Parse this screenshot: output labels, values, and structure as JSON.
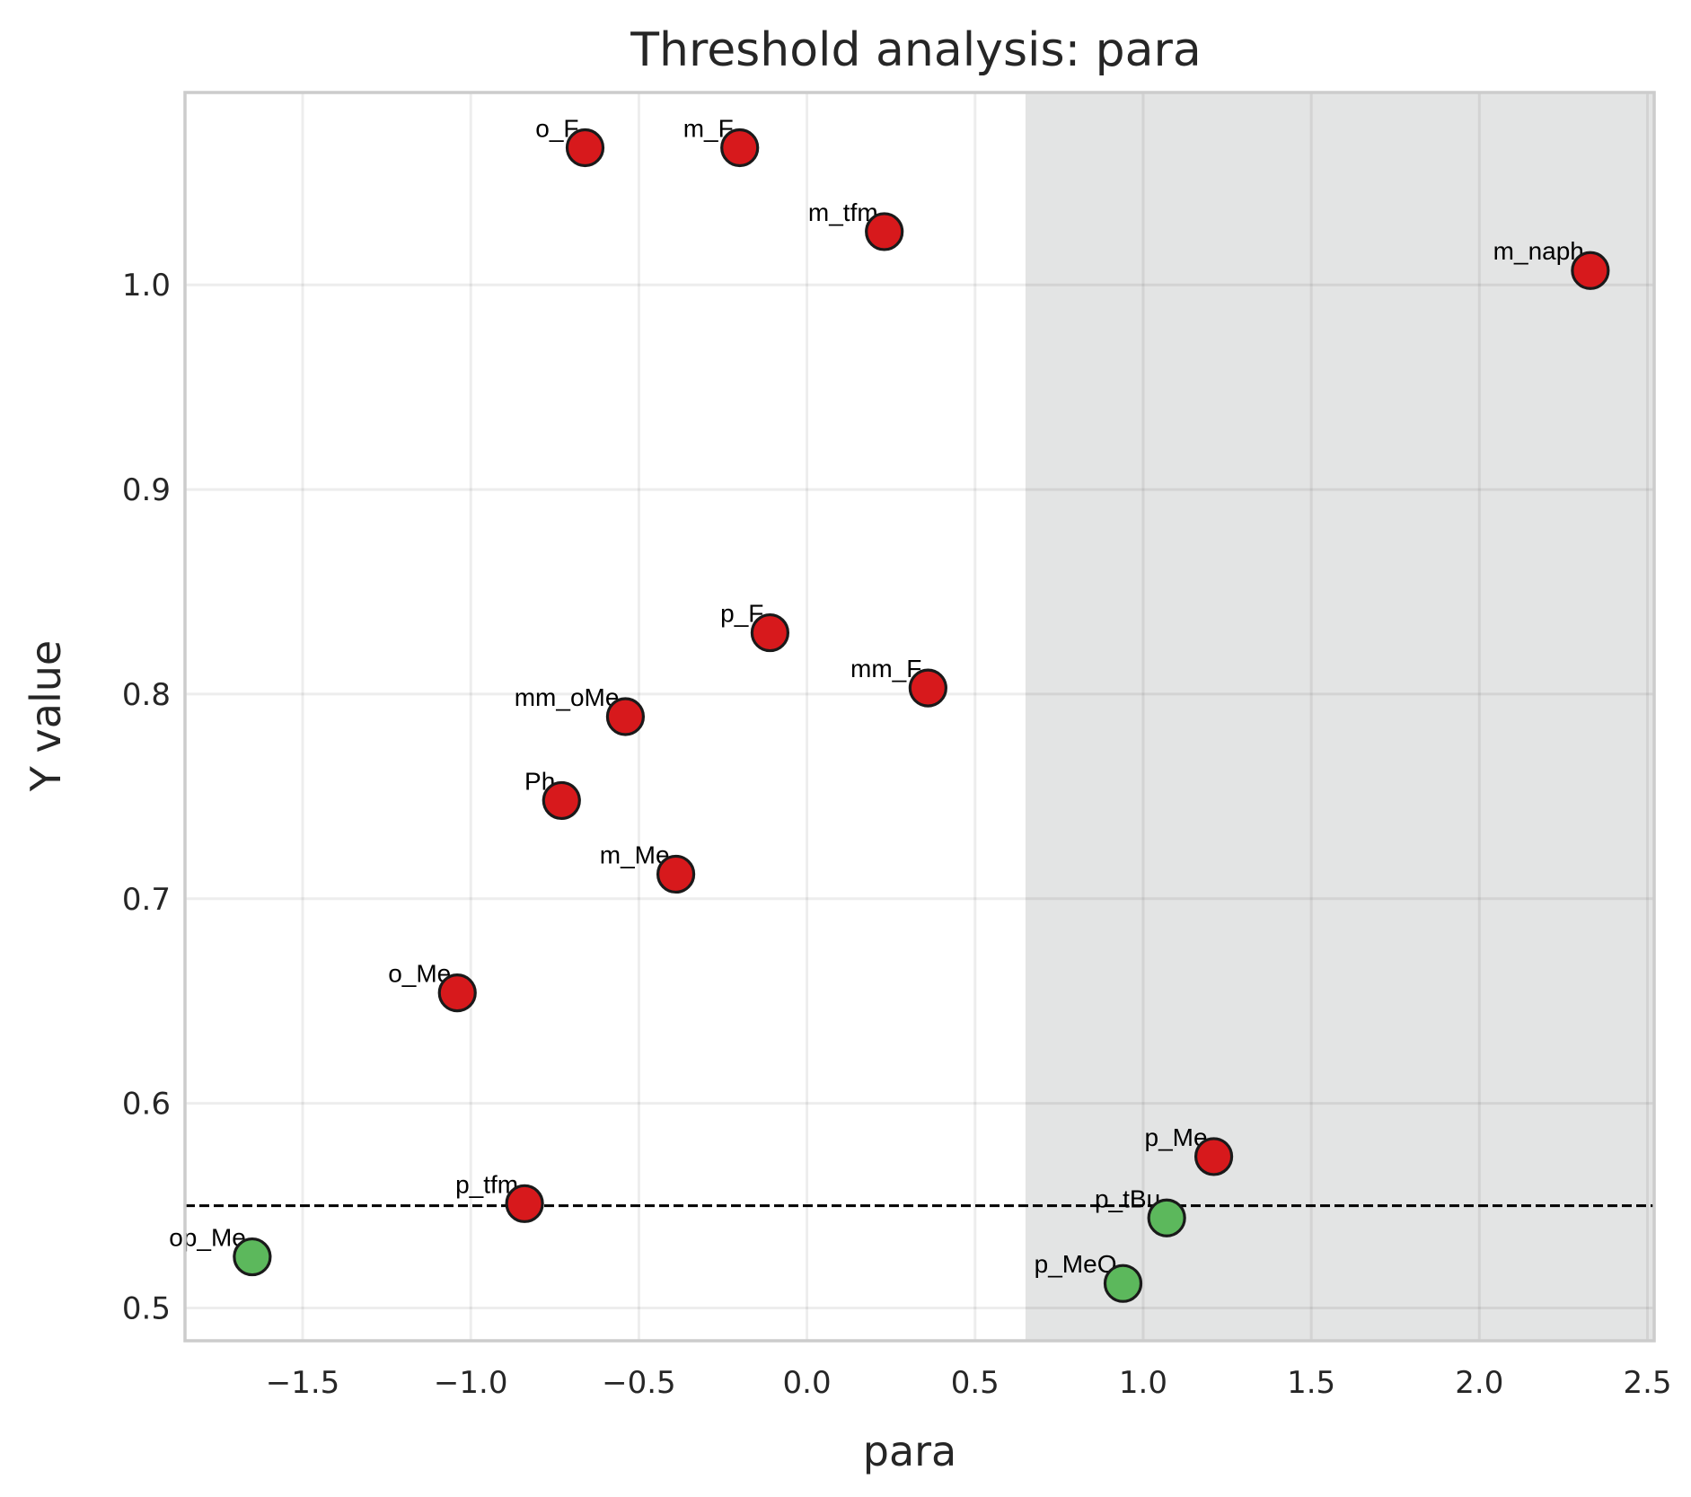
{
  "chart_data": {
    "type": "scatter",
    "title": "Threshold analysis: para",
    "xlabel": "para",
    "ylabel": "Y value",
    "xlim": [
      -1.85,
      2.52
    ],
    "ylim": [
      0.484,
      1.094
    ],
    "xticks": [
      -1.5,
      -1.0,
      -0.5,
      0.0,
      0.5,
      1.0,
      1.5,
      2.0,
      2.5
    ],
    "xtick_labels": [
      "−1.5",
      "−1.0",
      "−0.5",
      "0.0",
      "0.5",
      "1.0",
      "1.5",
      "2.0",
      "2.5"
    ],
    "yticks": [
      0.5,
      0.6,
      0.7,
      0.8,
      0.9,
      1.0
    ],
    "ytick_labels": [
      "0.5",
      "0.6",
      "0.7",
      "0.8",
      "0.9",
      "1.0"
    ],
    "grid": true,
    "threshold_y": 0.55,
    "shaded_x_range": [
      0.65,
      2.52
    ],
    "colors": {
      "above": "#d7191c",
      "below": "#5cb85c",
      "shade": "#e3e4e4",
      "threshold": "#000000",
      "grid": "#ebebeb",
      "frame": "#cccccc"
    },
    "points": [
      {
        "label": "o_F",
        "x": -0.66,
        "y": 1.067,
        "group": "above"
      },
      {
        "label": "m_F",
        "x": -0.2,
        "y": 1.067,
        "group": "above"
      },
      {
        "label": "m_tfm",
        "x": 0.23,
        "y": 1.026,
        "group": "above"
      },
      {
        "label": "m_naph",
        "x": 2.33,
        "y": 1.007,
        "group": "above"
      },
      {
        "label": "p_F",
        "x": -0.11,
        "y": 0.83,
        "group": "above"
      },
      {
        "label": "mm_F",
        "x": 0.36,
        "y": 0.803,
        "group": "above"
      },
      {
        "label": "mm_oMe",
        "x": -0.54,
        "y": 0.789,
        "group": "above"
      },
      {
        "label": "Ph",
        "x": -0.73,
        "y": 0.748,
        "group": "above"
      },
      {
        "label": "m_Me",
        "x": -0.39,
        "y": 0.712,
        "group": "above"
      },
      {
        "label": "o_Me",
        "x": -1.04,
        "y": 0.654,
        "group": "above"
      },
      {
        "label": "p_Me",
        "x": 1.21,
        "y": 0.574,
        "group": "above"
      },
      {
        "label": "p_tfm",
        "x": -0.84,
        "y": 0.551,
        "group": "above"
      },
      {
        "label": "p_tBu",
        "x": 1.07,
        "y": 0.544,
        "group": "below"
      },
      {
        "label": "op_Me",
        "x": -1.65,
        "y": 0.525,
        "group": "below"
      },
      {
        "label": "p_MeO",
        "x": 0.94,
        "y": 0.512,
        "group": "below"
      }
    ]
  }
}
